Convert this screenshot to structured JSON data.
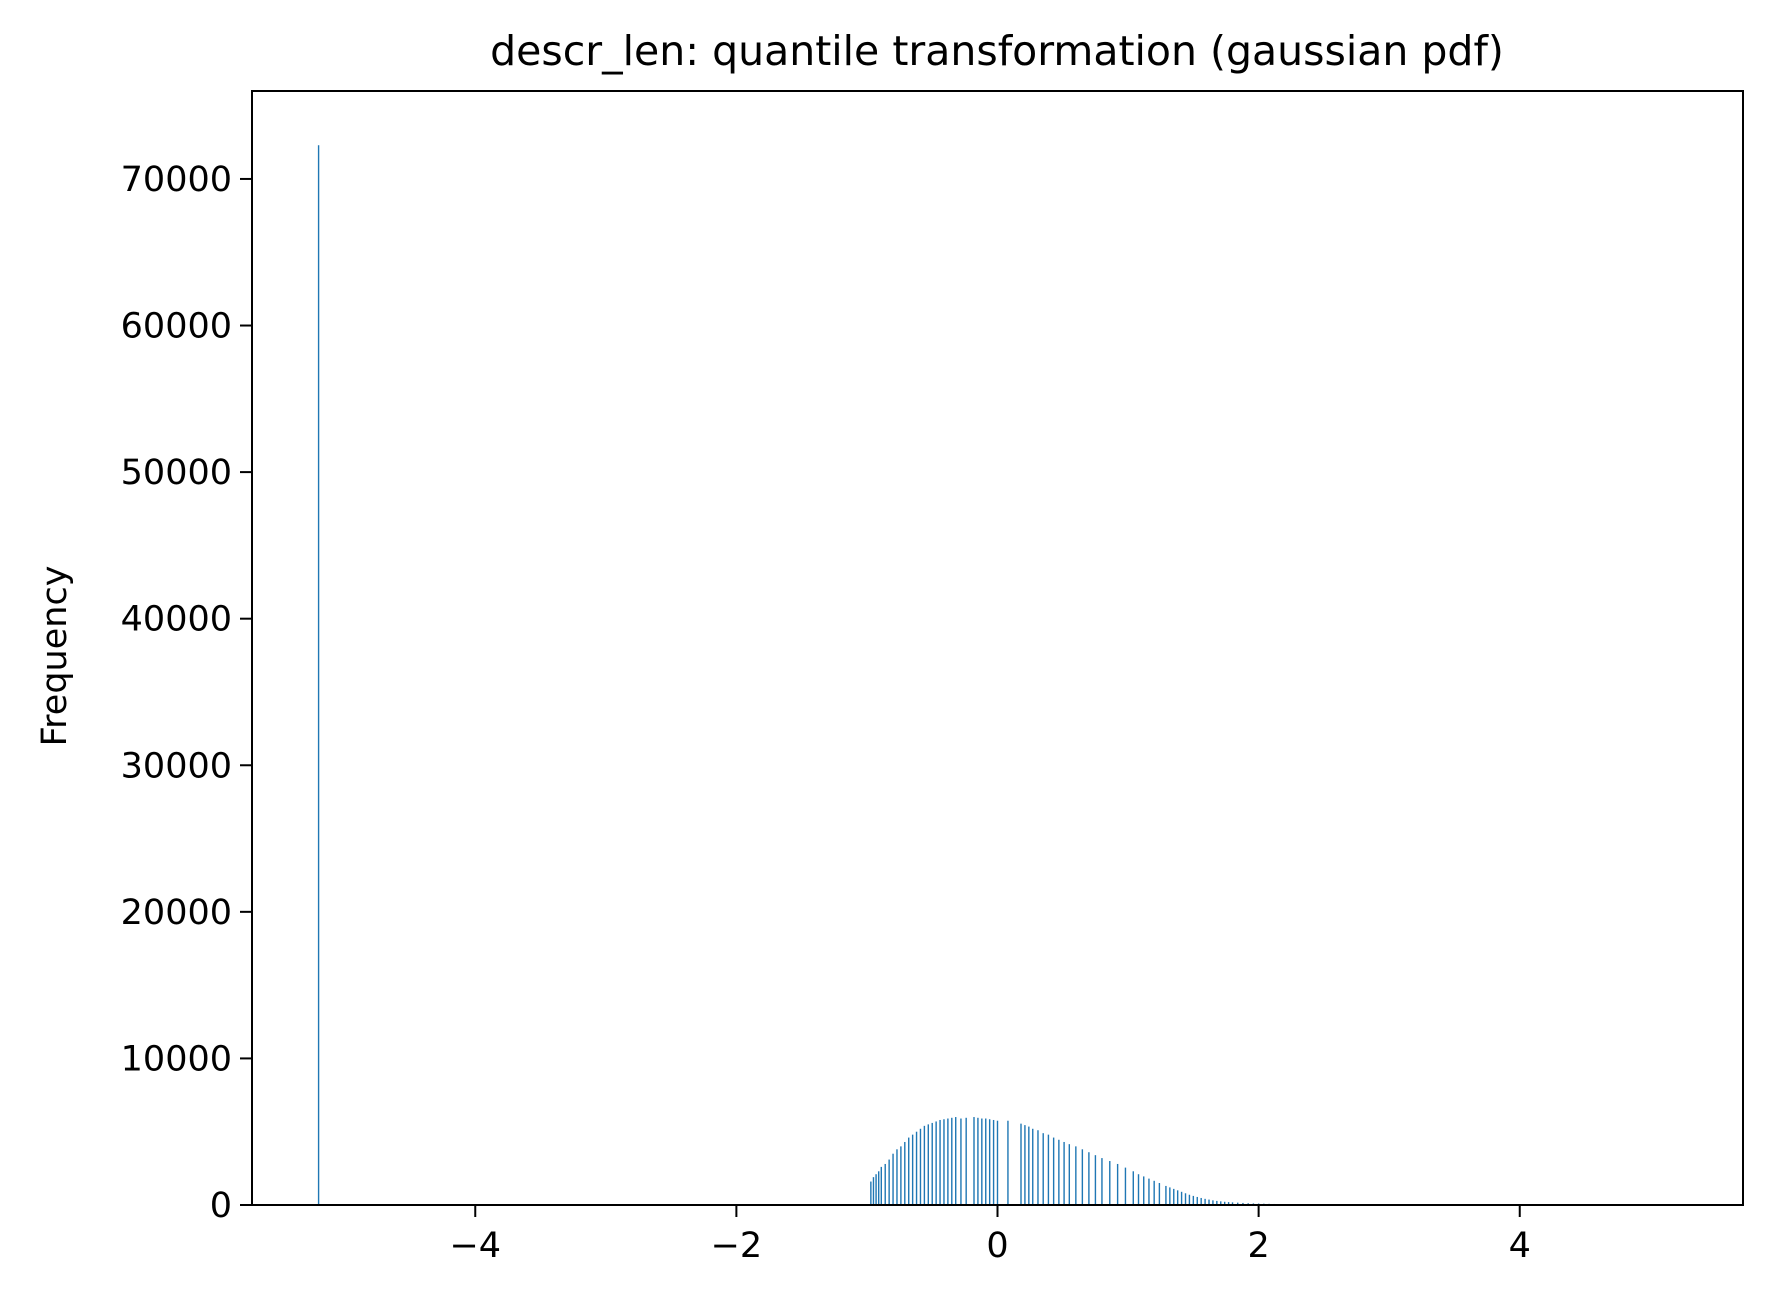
{
  "chart_data": {
    "type": "bar",
    "title": "descr_len: quantile transformation (gaussian pdf)",
    "xlabel": "",
    "ylabel": "Frequency",
    "xlim": [
      -5.71,
      5.71
    ],
    "ylim": [
      0,
      76000
    ],
    "x_ticks": [
      {
        "value": -4,
        "label": "−4"
      },
      {
        "value": -2,
        "label": "−2"
      },
      {
        "value": 0,
        "label": "0"
      },
      {
        "value": 2,
        "label": "2"
      },
      {
        "value": 4,
        "label": "4"
      }
    ],
    "y_ticks": [
      {
        "value": 0,
        "label": "0"
      },
      {
        "value": 10000,
        "label": "10000"
      },
      {
        "value": 20000,
        "label": "20000"
      },
      {
        "value": 30000,
        "label": "30000"
      },
      {
        "value": 40000,
        "label": "40000"
      },
      {
        "value": 50000,
        "label": "50000"
      },
      {
        "value": 60000,
        "label": "60000"
      },
      {
        "value": 70000,
        "label": "70000"
      }
    ],
    "grid": false,
    "bar_color": "#1f77b4",
    "series": [
      {
        "x": [
          -5.2,
          -0.97,
          -0.95,
          -0.93,
          -0.91,
          -0.89,
          -0.86,
          -0.83,
          -0.8,
          -0.77,
          -0.74,
          -0.71,
          -0.68,
          -0.65,
          -0.62,
          -0.59,
          -0.56,
          -0.53,
          -0.5,
          -0.47,
          -0.44,
          -0.41,
          -0.38,
          -0.35,
          -0.32,
          -0.28,
          -0.24,
          -0.18,
          -0.15,
          -0.12,
          -0.09,
          -0.06,
          -0.03,
          0.0,
          0.08,
          0.18,
          0.21,
          0.24,
          0.27,
          0.31,
          0.35,
          0.39,
          0.43,
          0.47,
          0.51,
          0.55,
          0.6,
          0.65,
          0.7,
          0.75,
          0.8,
          0.86,
          0.92,
          0.98,
          1.04,
          1.08,
          1.12,
          1.16,
          1.2,
          1.24,
          1.29,
          1.32,
          1.35,
          1.38,
          1.41,
          1.44,
          1.47,
          1.5,
          1.53,
          1.56,
          1.59,
          1.62,
          1.65,
          1.68,
          1.71,
          1.74,
          1.77,
          1.8,
          1.84,
          1.88,
          1.92,
          1.96,
          2.0,
          2.04,
          2.08,
          2.12,
          2.16,
          2.2,
          2.24,
          2.28,
          2.32
        ],
        "values": [
          72300,
          1600,
          1900,
          2100,
          2300,
          2600,
          2800,
          3100,
          3500,
          3800,
          4000,
          4300,
          4600,
          4800,
          5000,
          5200,
          5400,
          5500,
          5600,
          5700,
          5800,
          5850,
          5900,
          5950,
          6000,
          5900,
          5950,
          6000,
          5950,
          5900,
          5900,
          5850,
          5800,
          5750,
          5750,
          5550,
          5450,
          5350,
          5200,
          5100,
          4900,
          4800,
          4600,
          4450,
          4300,
          4150,
          4000,
          3800,
          3600,
          3400,
          3200,
          3000,
          2800,
          2550,
          2300,
          2100,
          1950,
          1800,
          1650,
          1500,
          1300,
          1200,
          1100,
          1000,
          900,
          800,
          700,
          620,
          550,
          480,
          420,
          370,
          320,
          280,
          250,
          220,
          200,
          180,
          160,
          140,
          120,
          110,
          100,
          90,
          80,
          70,
          60,
          50,
          40,
          30,
          20
        ]
      }
    ]
  }
}
